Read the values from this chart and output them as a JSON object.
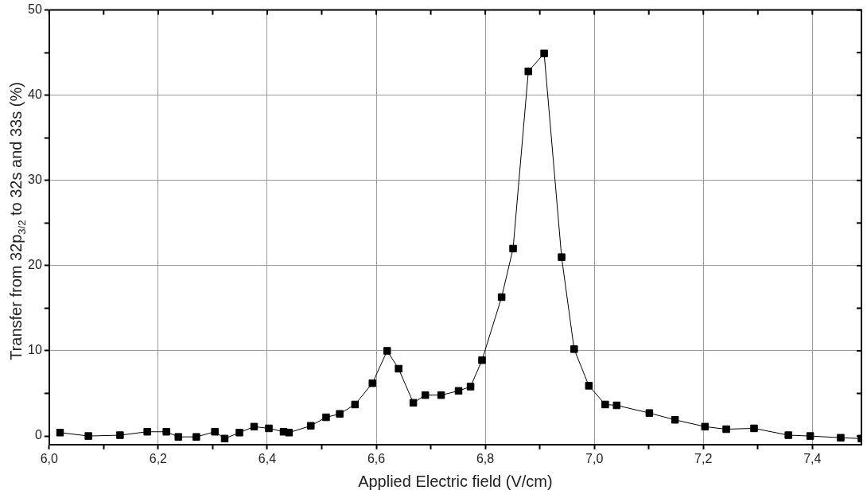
{
  "chart_data": {
    "type": "line",
    "xlabel": "Applied Electric field (V/cm)",
    "ylabel": "Transfer from 32p$_{3/2}$ to 32s and 33s (%)",
    "x": [
      6.02,
      6.072,
      6.13,
      6.18,
      6.215,
      6.237,
      6.27,
      6.304,
      6.322,
      6.349,
      6.376,
      6.403,
      6.43,
      6.44,
      6.48,
      6.508,
      6.533,
      6.561,
      6.593,
      6.62,
      6.641,
      6.668,
      6.69,
      6.719,
      6.751,
      6.773,
      6.794,
      6.83,
      6.851,
      6.879,
      6.908,
      6.94,
      6.963,
      6.99,
      7.02,
      7.041,
      7.101,
      7.148,
      7.203,
      7.242,
      7.293,
      7.356,
      7.396,
      7.452,
      7.49
    ],
    "series": [
      {
        "color": "#000000",
        "values": [
          0.4,
          0.0,
          0.1,
          0.5,
          0.5,
          -0.1,
          -0.1,
          0.5,
          -0.3,
          0.4,
          1.1,
          0.9,
          0.5,
          0.4,
          1.2,
          2.2,
          2.6,
          3.7,
          6.2,
          10.0,
          7.9,
          3.9,
          4.8,
          4.8,
          5.3,
          5.8,
          8.9,
          16.3,
          22.0,
          42.8,
          44.9,
          21.0,
          10.2,
          5.9,
          3.7,
          3.6,
          2.7,
          1.9,
          1.1,
          0.8,
          0.9,
          0.1,
          0.0,
          -0.2,
          -0.3
        ]
      }
    ],
    "xlim": [
      6.0,
      7.49
    ],
    "ylim": [
      -1,
      50
    ],
    "xticks": [
      {
        "value": 6.0,
        "label": "6,0"
      },
      {
        "value": 6.1,
        "label": null
      },
      {
        "value": 6.2,
        "label": "6,2"
      },
      {
        "value": 6.3,
        "label": null
      },
      {
        "value": 6.4,
        "label": "6,4"
      },
      {
        "value": 6.5,
        "label": null
      },
      {
        "value": 6.6,
        "label": "6,6"
      },
      {
        "value": 6.7,
        "label": null
      },
      {
        "value": 6.8,
        "label": "6,8"
      },
      {
        "value": 6.9,
        "label": null
      },
      {
        "value": 7.0,
        "label": "7,0"
      },
      {
        "value": 7.1,
        "label": null
      },
      {
        "value": 7.2,
        "label": "7,2"
      },
      {
        "value": 7.3,
        "label": null
      },
      {
        "value": 7.4,
        "label": "7,4"
      }
    ],
    "yticks": [
      0,
      {
        "value": 5,
        "label": null
      },
      10,
      {
        "value": 15,
        "label": null
      },
      20,
      {
        "value": 25,
        "label": null
      },
      30,
      {
        "value": 35,
        "label": null
      },
      40,
      {
        "value": 45,
        "label": null
      },
      50
    ],
    "grid": true,
    "legend": false,
    "marker": "square",
    "line_style": "solid"
  }
}
